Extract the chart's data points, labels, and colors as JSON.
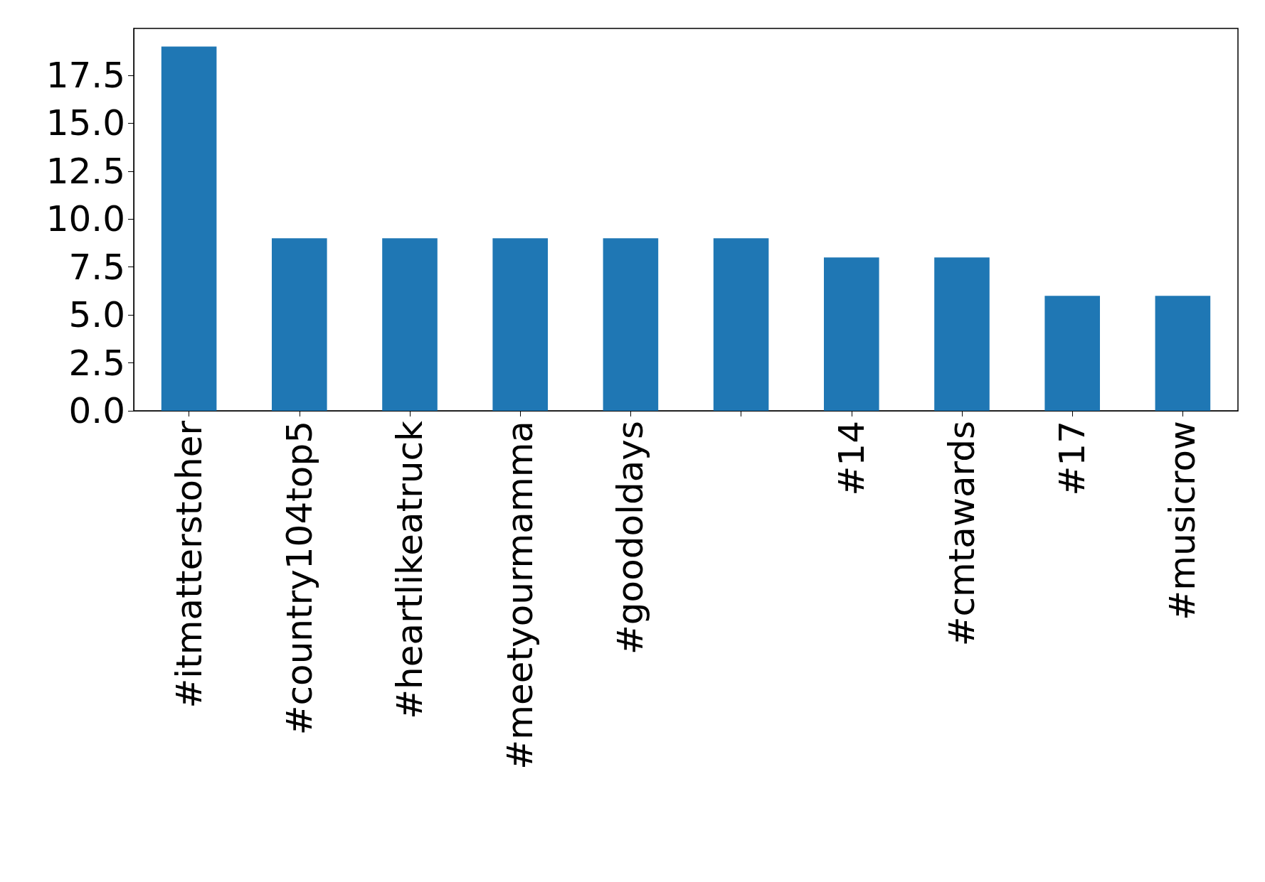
{
  "chart_data": {
    "type": "bar",
    "categories": [
      "#itmatterstoher",
      "#country104top5",
      "#heartlikeatruck",
      "#meetyourmamma",
      "#goodoldays",
      null,
      "#14",
      "#cmtawards",
      "#17",
      "#musicrow"
    ],
    "values": [
      19,
      9,
      9,
      9,
      9,
      9,
      8,
      8,
      6,
      6
    ],
    "color": "#1f77b4",
    "ylim": [
      0,
      19.95
    ],
    "yticks": [
      {
        "value": 0,
        "label": "0.0"
      },
      {
        "value": 2.5,
        "label": "2.5"
      },
      {
        "value": 5,
        "label": "5.0"
      },
      {
        "value": 7.5,
        "label": "7.5"
      },
      {
        "value": 10,
        "label": "10.0"
      },
      {
        "value": 12.5,
        "label": "12.5"
      },
      {
        "value": 15,
        "label": "15.0"
      },
      {
        "value": 17.5,
        "label": "17.5"
      }
    ],
    "grid": false
  }
}
